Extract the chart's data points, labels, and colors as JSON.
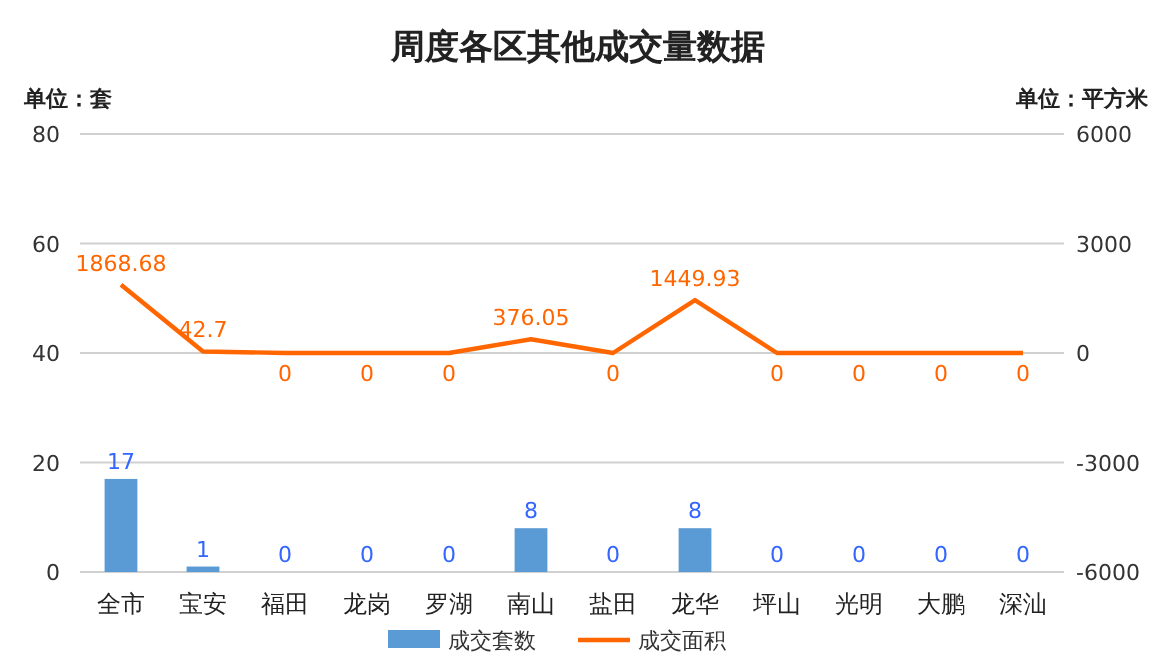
{
  "chart_data": {
    "type": "bar",
    "title": "周度各区其他成交量数据",
    "ylabel": "单位：套",
    "y2label": "单位：平方米",
    "categories": [
      "全市",
      "宝安",
      "福田",
      "龙岗",
      "罗湖",
      "南山",
      "盐田",
      "龙华",
      "坪山",
      "光明",
      "大鹏",
      "深汕"
    ],
    "series": [
      {
        "name": "成交套数",
        "color": "#5b9bd5",
        "values": [
          17,
          1,
          0,
          0,
          0,
          8,
          0,
          8,
          0,
          0,
          0,
          0
        ]
      },
      {
        "name": "成交面积",
        "type": "line",
        "axis": "y2",
        "color": "#ff6600",
        "values": [
          1868.68,
          42.7,
          0,
          0,
          0,
          376.05,
          0,
          1449.93,
          0,
          0,
          0,
          0
        ]
      }
    ],
    "ylim": [
      0,
      80
    ],
    "yticks": [
      0,
      20,
      40,
      60,
      80
    ],
    "y2lim": [
      -6000,
      6000
    ],
    "y2ticks": [
      -6000,
      -3000,
      0,
      3000,
      6000
    ],
    "grid": "y",
    "legend": "bottom",
    "data_labels": true,
    "marker": "none"
  }
}
